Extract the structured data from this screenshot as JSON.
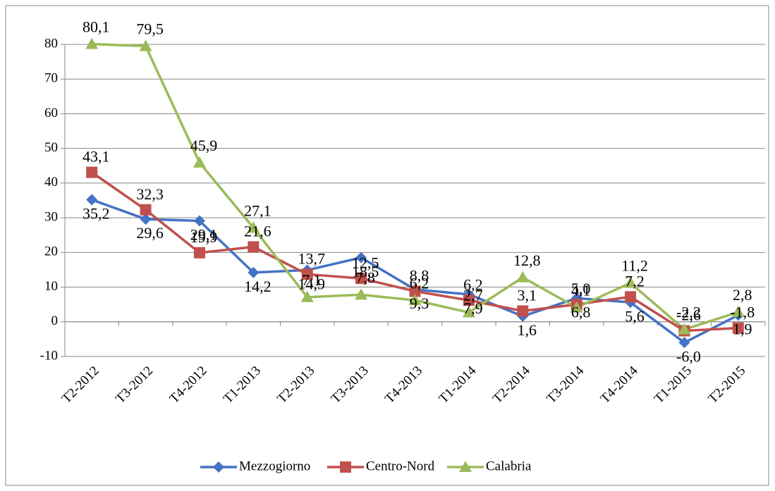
{
  "chart_data": {
    "type": "line",
    "categories": [
      "T2-2012",
      "T3-2012",
      "T4-2012",
      "T1-2013",
      "T2-2013",
      "T3-2013",
      "T4-2013",
      "T1-2014",
      "T2-2014",
      "T3-2014",
      "T4-2014",
      "T1-2015",
      "T2-2015"
    ],
    "series": [
      {
        "name": "Mezzogiorno",
        "color": "#4472c4",
        "marker": "diamond",
        "values": [
          35.2,
          29.6,
          29.1,
          14.2,
          14.9,
          18.5,
          9.3,
          7.9,
          1.6,
          6.8,
          5.6,
          -6.0,
          1.9
        ],
        "value_labels": [
          "35,2",
          "29,6",
          "29,1",
          "14,2",
          "14,9",
          "18,5",
          "9,3",
          "7,9",
          "1,6",
          "6,8",
          "5,6",
          "-6,0",
          "1,9"
        ]
      },
      {
        "name": "Centro-Nord",
        "color": "#c0504d",
        "marker": "square",
        "values": [
          43.1,
          32.3,
          19.9,
          21.6,
          13.7,
          12.5,
          8.8,
          6.2,
          3.1,
          5.0,
          7.2,
          -2.6,
          -1.8
        ],
        "value_labels": [
          "43,1",
          "32,3",
          "19,9",
          "21,6",
          "13,7",
          "12,5",
          "8,8",
          "6,2",
          "3,1",
          "5,0",
          "7,2",
          "-2,6",
          "-1,8"
        ]
      },
      {
        "name": "Calabria",
        "color": "#9bbb59",
        "marker": "triangle",
        "values": [
          80.1,
          79.5,
          45.9,
          27.1,
          7.1,
          7.8,
          6.2,
          2.7,
          12.8,
          4.1,
          11.2,
          -2.2,
          2.8
        ],
        "value_labels": [
          "80,1",
          "79,5",
          "45,9",
          "27,1",
          "7,1",
          "7,8",
          "6,2",
          "2,7",
          "12,8",
          "4,1",
          "11,2",
          "-2,2",
          "2,8"
        ]
      }
    ],
    "ylim": [
      -10,
      80
    ],
    "yticks": [
      -10,
      0,
      10,
      20,
      30,
      40,
      50,
      60,
      70,
      80
    ],
    "grid": true,
    "legend": "bottom"
  }
}
